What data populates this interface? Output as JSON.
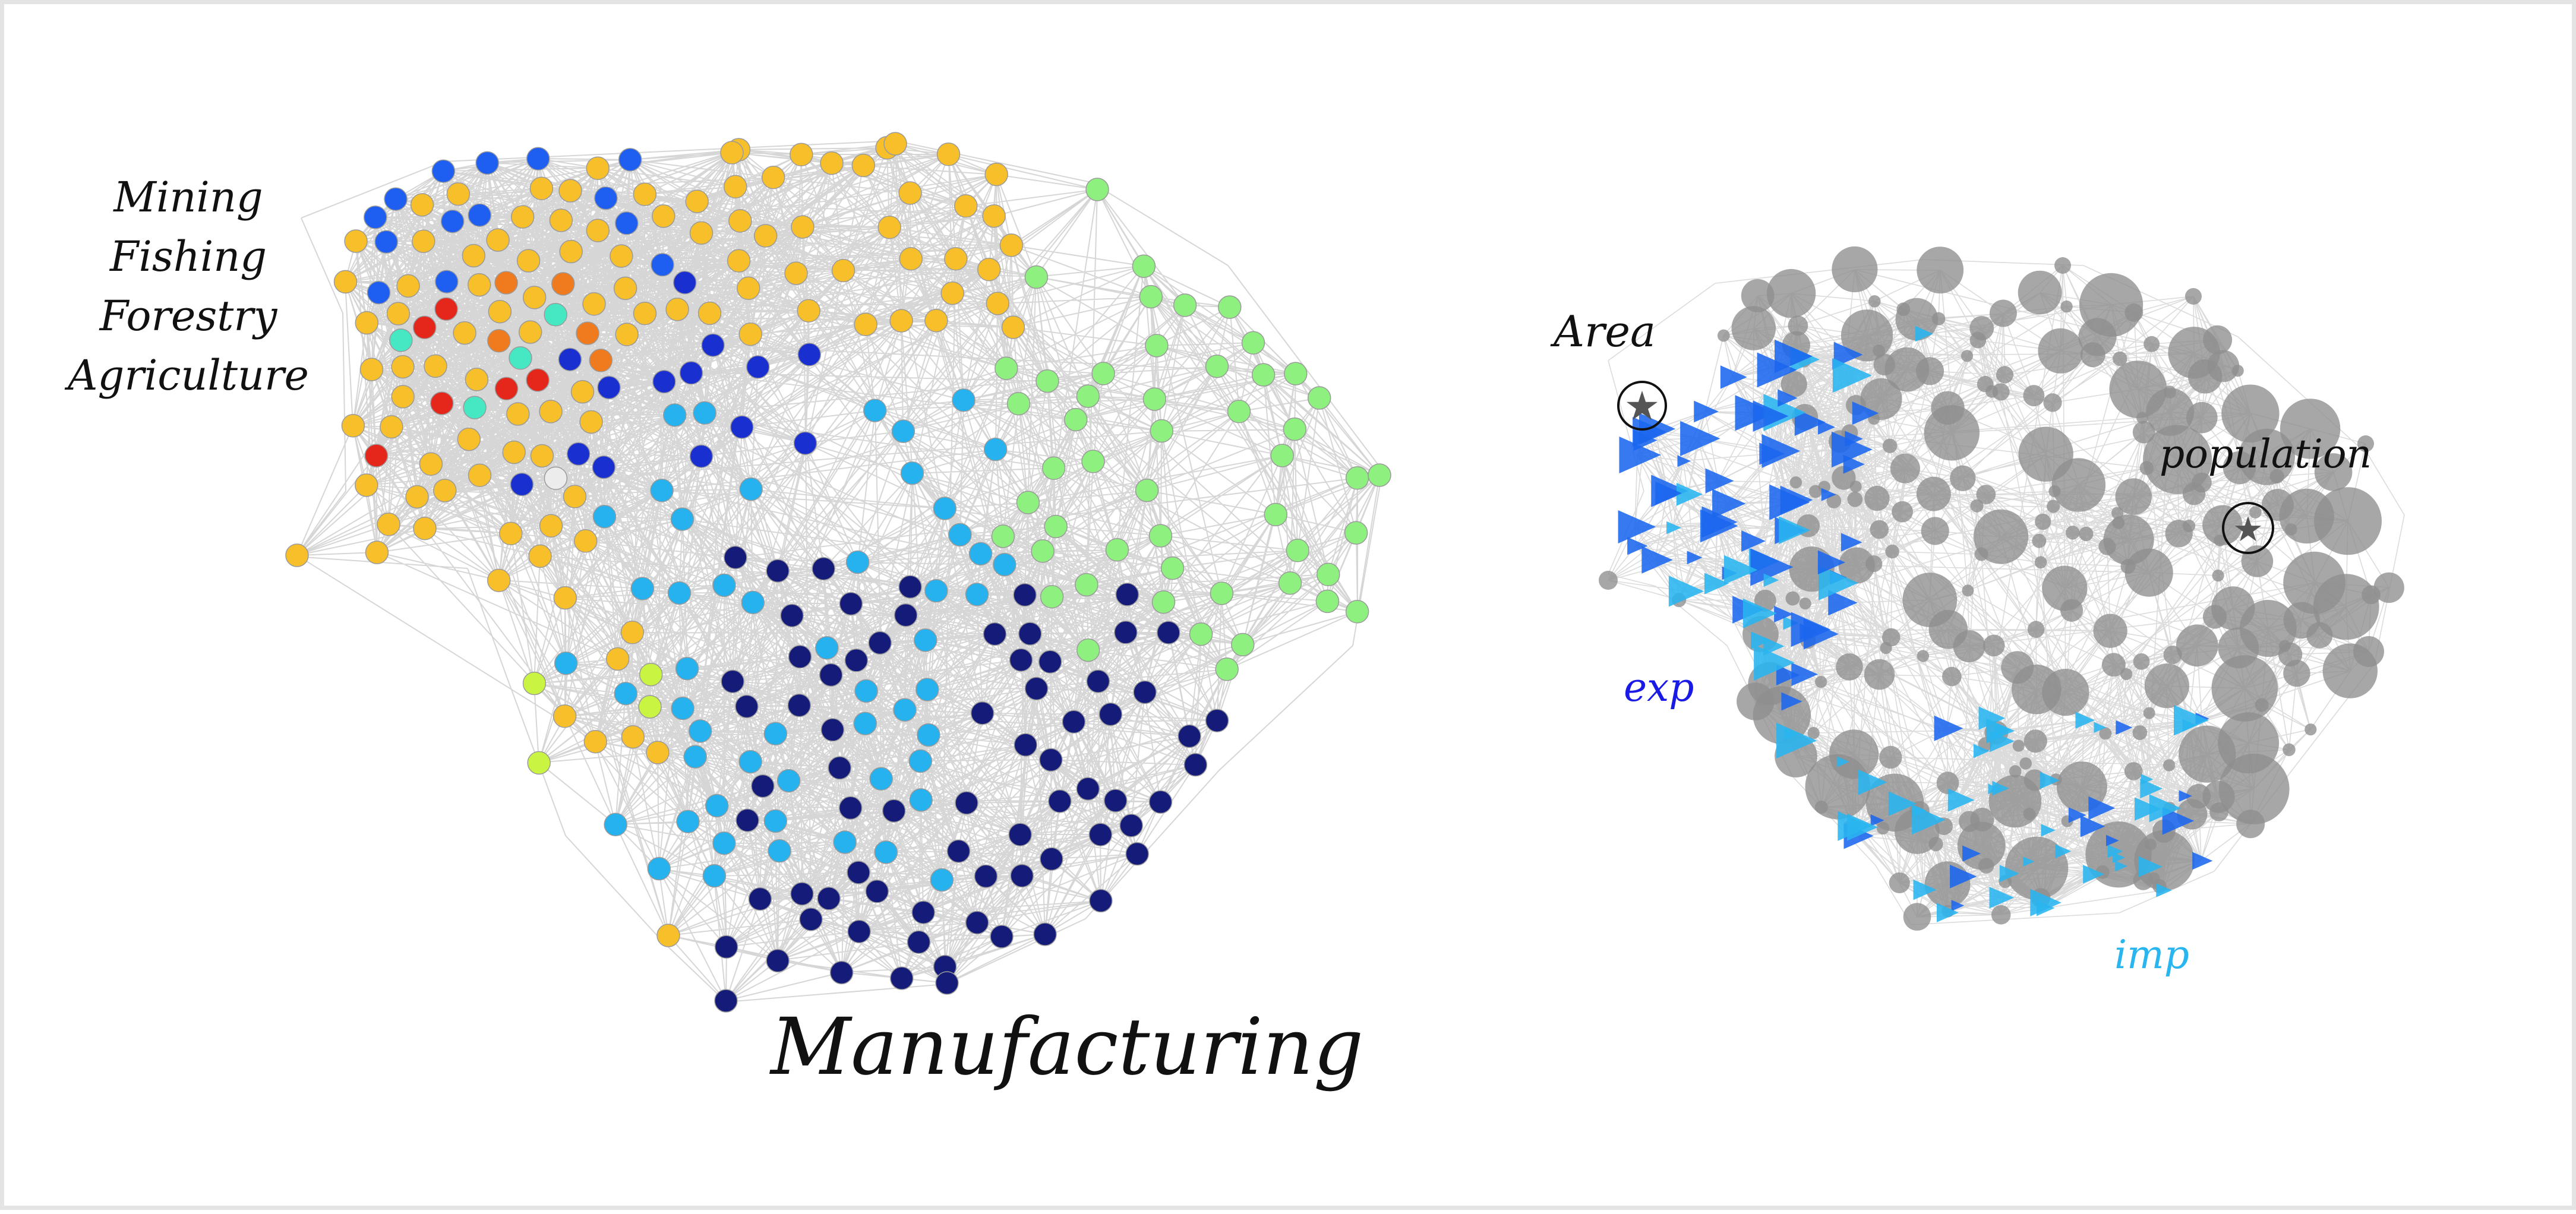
{
  "colors": {
    "edge": "#cfcfcf",
    "node_border": "#9a9a9a",
    "grey_node": "#8e8e8e",
    "exp": "#1a66ee",
    "imp": "#29b5f0",
    "star_ring": "#111111",
    "palette": {
      "red": "#e5261b",
      "orange": "#f07a1e",
      "amber": "#f7bf2a",
      "lime": "#c9f442",
      "lightgreen": "#8ef07e",
      "aqua": "#46e8c3",
      "sky": "#25b2ee",
      "blue": "#1e5ef0",
      "darkblue": "#1a2fd0",
      "navy": "#151b78",
      "white": "#ececec"
    }
  },
  "labels": {
    "sectors": [
      "Mining",
      "Fishing",
      "Forestry",
      "Agriculture"
    ],
    "manufacturing": "Manufacturing",
    "area": "Area",
    "population": "population",
    "exp": "exp",
    "imp": "imp",
    "exp_color": "#1a1ae6",
    "imp_color": "#29b5f0"
  }
}
